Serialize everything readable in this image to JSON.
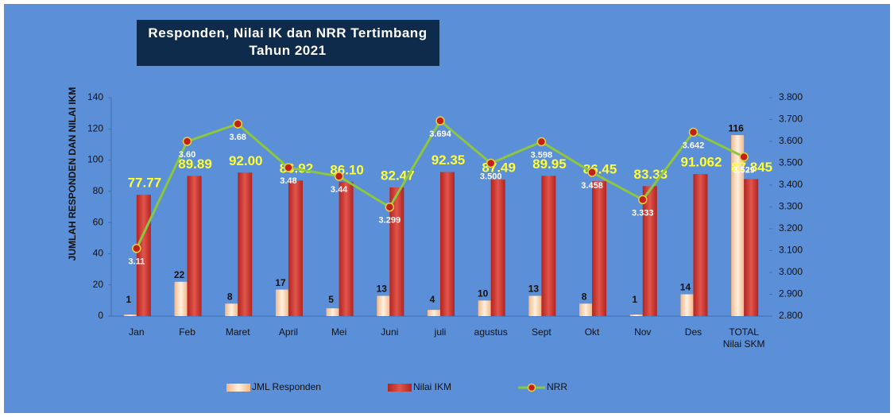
{
  "chart_data": {
    "type": "bar",
    "title": "Responden, Nilai IK dan NRR Tertimbang\nTahun 2021",
    "y_label": "JUMLAH RESPONDEN DAN NILAI IKM",
    "categories": [
      "Jan",
      "Feb",
      "Maret",
      "April",
      "Mei",
      "Juni",
      "juli",
      "agustus",
      "Sept",
      "Okt",
      "Nov",
      "Des",
      "TOTAL\nNilai SKM"
    ],
    "series": [
      {
        "name": "JML Responden",
        "color": "#f9d2ad",
        "type": "bar",
        "values": [
          1,
          22,
          8,
          17,
          5,
          13,
          4,
          10,
          13,
          8,
          1,
          14,
          116
        ]
      },
      {
        "name": "Nilai IKM",
        "color": "#d9413a",
        "type": "bar",
        "values": [
          77.77,
          89.89,
          92.0,
          86.92,
          86.1,
          82.47,
          92.35,
          87.49,
          89.95,
          86.45,
          83.33,
          91.062,
          87.845
        ],
        "value_labels": [
          "77.77",
          "89.89",
          "92.00",
          "86.92",
          "86.10",
          "82.47",
          "92.35",
          "87.49",
          "89.95",
          "86.45",
          "83.33",
          "91.062",
          "87.845"
        ]
      },
      {
        "name": "NRR",
        "color": "#8dc63f",
        "type": "line",
        "axis": "y2",
        "values": [
          3.11,
          3.6,
          3.68,
          3.48,
          3.44,
          3.299,
          3.694,
          3.5,
          3.598,
          3.458,
          3.333,
          3.642,
          3.529
        ],
        "value_labels": [
          "3.11",
          "3.60",
          "3.68",
          "3.48",
          "3.44",
          "3.299",
          "3.694",
          "3.500",
          "3.598",
          "3.458",
          "3.333",
          "3.642",
          "3.529"
        ]
      }
    ],
    "ylim": [
      0,
      140
    ],
    "yticks": [
      0,
      20,
      40,
      60,
      80,
      100,
      120,
      140
    ],
    "y2lim": [
      2.8,
      3.8
    ],
    "y2ticks": [
      {
        "value": 2.8,
        "label": "2.800"
      },
      {
        "value": 2.9,
        "label": "2.900"
      },
      {
        "value": 3.0,
        "label": "3.000"
      },
      {
        "value": 3.1,
        "label": "3.100"
      },
      {
        "value": 3.2,
        "label": "3.200"
      },
      {
        "value": 3.3,
        "label": "3.300"
      },
      {
        "value": 3.4,
        "label": "3.400"
      },
      {
        "value": 3.5,
        "label": "3.500"
      },
      {
        "value": 3.6,
        "label": "3.600"
      },
      {
        "value": 3.7,
        "label": "3.700"
      },
      {
        "value": 3.8,
        "label": "3.800"
      }
    ],
    "grid": false,
    "legend": "bottom"
  }
}
